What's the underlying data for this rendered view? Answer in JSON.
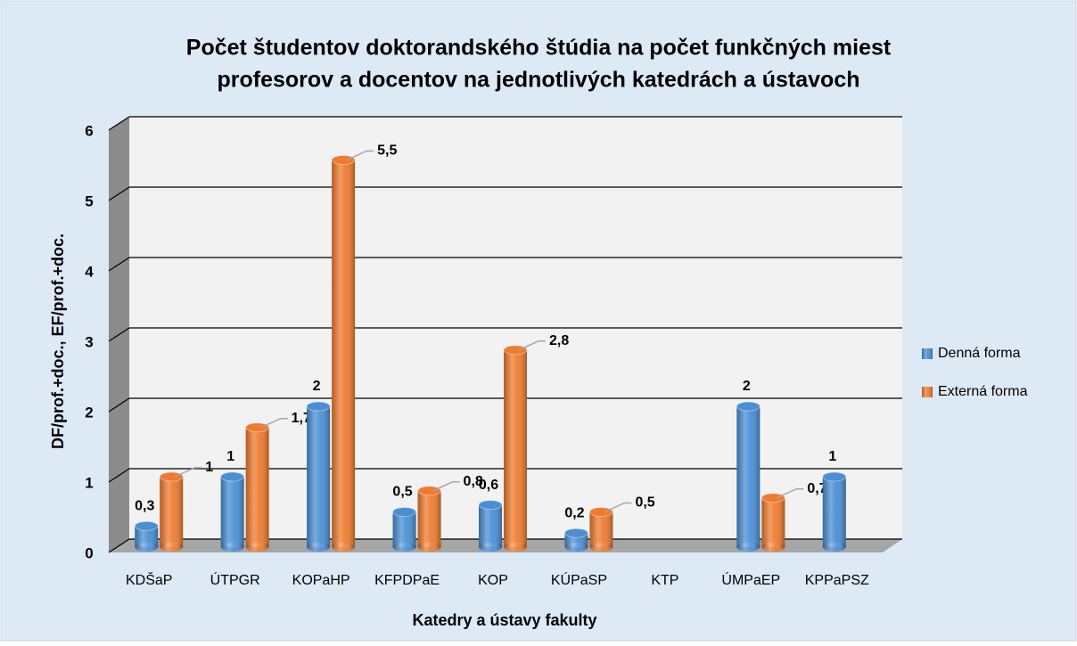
{
  "chart_data": {
    "type": "bar",
    "title": [
      "Počet študentov doktorandského štúdia na počet funkčných miest",
      "profesorov a docentov na jednotlivých katedrách a ústavoch"
    ],
    "x_label": "Katedry a ústavy fakulty",
    "y_label": "DF/prof.+doc., EF/prof.+doc.",
    "categories": [
      "KDŠaP",
      "ÚTPGR",
      "KOPaHP",
      "KFPDPaE",
      "KOP",
      "KÚPaSP",
      "KTP",
      "ÚMPaEP",
      "KPPaPSZ"
    ],
    "series": [
      {
        "name": "Denná forma",
        "color": "#4a8fd4",
        "values": [
          0.3,
          1,
          2,
          0.5,
          0.6,
          0.2,
          null,
          2,
          1
        ],
        "value_labels": [
          "0,3",
          "1",
          "2",
          "0,5",
          "0,6",
          "0,2",
          null,
          "2",
          "1"
        ]
      },
      {
        "name": "Externá forma",
        "color": "#ee7b30",
        "values": [
          1,
          1.7,
          5.5,
          0.8,
          2.8,
          0.5,
          null,
          0.7,
          null
        ],
        "value_labels": [
          "1",
          "1,7",
          "5,5",
          "0,8",
          "2,8",
          "0,5",
          null,
          "0,7",
          null
        ]
      }
    ],
    "ylim": [
      0,
      6
    ],
    "yticks": [
      0,
      1,
      2,
      3,
      4,
      5,
      6
    ],
    "grid": true,
    "legend": "right"
  }
}
